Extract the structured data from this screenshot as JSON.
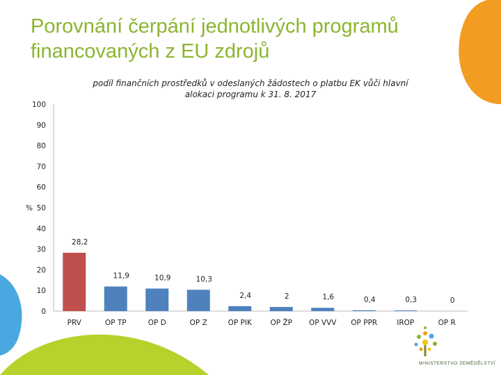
{
  "page": {
    "title_line1": "Porovnání čerpání jednotlivých programů",
    "title_line2": "financovaných z EU zdrojů"
  },
  "logo": {
    "text": "MINISTERSTVO ZEMĚDĚLSTVÍ"
  },
  "colors": {
    "accent": "#8cb52f",
    "orange": "#f29c22",
    "blue": "#4aa8e0",
    "bar_primary": "#c0504d",
    "bar_secondary": "#4f81bd"
  },
  "chart_data": {
    "type": "bar",
    "title": "podíl finančních prostředků v odeslaných žádostech o platbu EK vůči hlavní alokaci programu k 31. 8. 2017",
    "ylabel": "%",
    "ylim": [
      0,
      100
    ],
    "yticks": [
      0,
      10,
      20,
      30,
      40,
      50,
      60,
      70,
      80,
      90,
      100
    ],
    "categories": [
      "PRV",
      "OP TP",
      "OP D",
      "OP Z",
      "OP PIK",
      "OP ŽP",
      "OP VVV",
      "OP PPR",
      "IROP",
      "OP R"
    ],
    "values": [
      28.2,
      11.9,
      10.9,
      10.3,
      2.4,
      2,
      1.6,
      0.4,
      0.3,
      0
    ],
    "data_labels": [
      "28,2",
      "11,9",
      "10,9",
      "10,3",
      "2,4",
      "2",
      "1,6",
      "0,4",
      "0,3",
      "0"
    ],
    "bar_colors": [
      "#c0504d",
      "#4f81bd",
      "#4f81bd",
      "#4f81bd",
      "#4f81bd",
      "#4f81bd",
      "#4f81bd",
      "#4f81bd",
      "#4f81bd",
      "#4f81bd"
    ],
    "grid": false,
    "legend": "none"
  }
}
